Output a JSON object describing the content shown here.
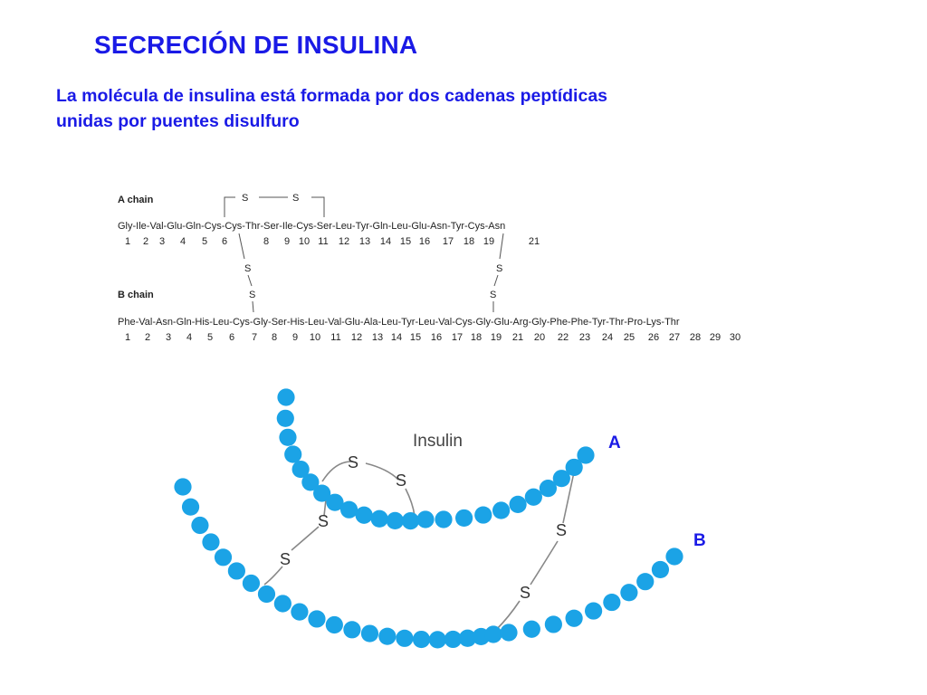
{
  "title": "SECRECIÓN DE INSULINA",
  "subtitle": {
    "line1": "La molécula de insulina está formada por dos cadenas peptídicas",
    "line2": "unidas por puentes disulfuro"
  },
  "sequence": {
    "a_chain_label": "A chain",
    "b_chain_label": "B chain",
    "a_sequence": "Gly-Ile-Val-Glu-Gln-Cys-Cys-Thr-Ser-Ile-Cys-Ser-Leu-Tyr-Gln-Leu-Glu-Asn-Tyr-Cys-Asn",
    "b_sequence": "Phe-Val-Asn-Gln-His-Leu-Cys-Gly-Ser-His-Leu-Val-Glu-Ala-Leu-Tyr-Leu-Val-Cys-Gly-Glu-Arg-Gly-Phe-Phe-Tyr-Thr-Pro-Lys-Thr",
    "a_numbers": [
      "1",
      "2",
      "3",
      "4",
      "5",
      "6",
      "8",
      "9",
      "10",
      "11",
      "12",
      "13",
      "14",
      "15",
      "16",
      "17",
      "18",
      "19",
      "21"
    ],
    "b_numbers": [
      "1",
      "2",
      "3",
      "4",
      "5",
      "6",
      "7",
      "8",
      "9",
      "10",
      "11",
      "12",
      "13",
      "14",
      "15",
      "16",
      "17",
      "18",
      "19",
      "21",
      "20",
      "22",
      "23",
      "24",
      "25",
      "26",
      "27",
      "28",
      "29",
      "30"
    ],
    "s": "S"
  },
  "ribbon": {
    "protein_label": "Insulin",
    "s": "S",
    "chain_a_letter": "A",
    "chain_b_letter": "B",
    "bead_color": "#1ba3e6"
  }
}
